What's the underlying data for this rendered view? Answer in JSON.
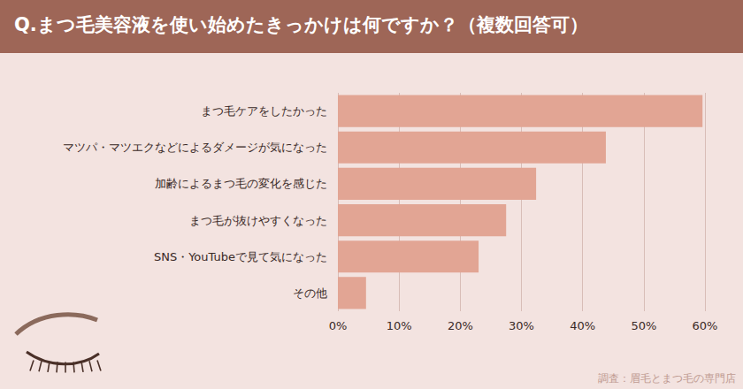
{
  "chart_data": {
    "type": "bar",
    "orientation": "horizontal",
    "title": "Q.まつ毛美容液を使い始めたきっかけは何ですか？（複数回答可）",
    "categories": [
      "まつ毛ケアをしたかった",
      "マツパ・マツエクなどによるダメージが気になった",
      "加齢によるまつ毛の変化を感じた",
      "まつ毛が抜けやすくなった",
      "SNS・YouTubeで見て気になった",
      "その他"
    ],
    "values": [
      59.6,
      43.8,
      32.4,
      27.5,
      23.0,
      4.6
    ],
    "color": "#e2a594",
    "xlim": [
      0,
      60
    ],
    "xticks": [
      {
        "value": 0,
        "label": "0%"
      },
      {
        "value": 10,
        "label": "10%"
      },
      {
        "value": 20,
        "label": "20%"
      },
      {
        "value": 30,
        "label": "30%"
      },
      {
        "value": 40,
        "label": "40%"
      },
      {
        "value": 50,
        "label": "50%"
      },
      {
        "value": 60,
        "label": "60%"
      }
    ],
    "grid": true,
    "annotations": [
      "調査：眉毛とまつ毛の専門店"
    ]
  }
}
